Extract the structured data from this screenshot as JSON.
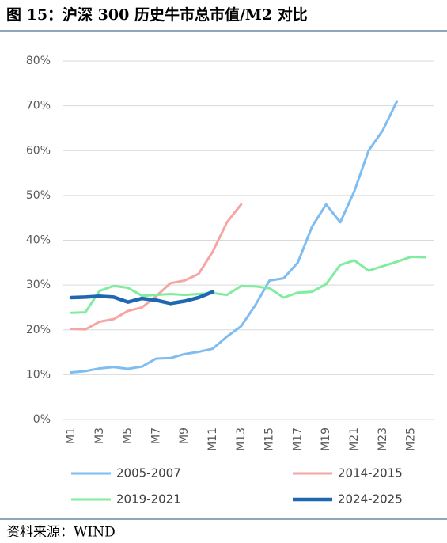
{
  "header": {
    "title": "图 15：沪深 300 历史牛市总市值/M2 对比"
  },
  "chart_data": {
    "type": "line",
    "categories": [
      "M1",
      null,
      "M3",
      null,
      "M5",
      null,
      "M7",
      null,
      "M9",
      null,
      "M11",
      null,
      "M13",
      null,
      "M15",
      null,
      "M17",
      null,
      "M19",
      null,
      "M21",
      null,
      "M23",
      null,
      "M25",
      null
    ],
    "series": [
      {
        "name": "2005-2007",
        "color": "#7fbdf0",
        "width": 3,
        "values": [
          10.5,
          10.8,
          11.4,
          11.7,
          11.3,
          11.8,
          13.6,
          13.7,
          14.6,
          15.1,
          15.8,
          18.5,
          20.8,
          25.5,
          31,
          31.5,
          35,
          43,
          48,
          44,
          51,
          60,
          64.5,
          71,
          null,
          null
        ]
      },
      {
        "name": "2014-2015",
        "color": "#f6a5a5",
        "width": 3,
        "values": [
          20.2,
          20.1,
          21.8,
          22.4,
          24.2,
          25,
          27.5,
          30.4,
          31,
          32.5,
          37.5,
          44,
          48,
          null,
          null,
          null,
          null,
          null,
          null,
          null,
          null,
          null,
          null,
          null,
          null,
          null
        ]
      },
      {
        "name": "2019-2021",
        "color": "#80eca0",
        "width": 3,
        "values": [
          23.8,
          23.9,
          28.7,
          29.8,
          29.4,
          27.6,
          27.8,
          28,
          27.8,
          28,
          28.2,
          27.8,
          29.8,
          29.7,
          29.3,
          27.2,
          28.3,
          28.5,
          30.2,
          34.5,
          35.5,
          33.2,
          34.2,
          35.2,
          36.3,
          36.2
        ]
      },
      {
        "name": "2024-2025",
        "color": "#1f67b1",
        "width": 4.5,
        "values": [
          27.2,
          27.3,
          27.5,
          27.3,
          26.2,
          27,
          26.6,
          25.9,
          26.4,
          27.2,
          28.5,
          null,
          null,
          null,
          null,
          null,
          null,
          null,
          null,
          null,
          null,
          null,
          null,
          null,
          null,
          null
        ]
      }
    ],
    "ylim": [
      0,
      80
    ],
    "yticks": [
      {
        "value": 0,
        "label": "0%"
      },
      {
        "value": 10,
        "label": "10%"
      },
      {
        "value": 20,
        "label": "20%"
      },
      {
        "value": 30,
        "label": "30%"
      },
      {
        "value": 40,
        "label": "40%"
      },
      {
        "value": 50,
        "label": "50%"
      },
      {
        "value": 60,
        "label": "60%"
      },
      {
        "value": 70,
        "label": "70%"
      },
      {
        "value": 80,
        "label": "80%"
      }
    ],
    "grid": true
  },
  "footer": {
    "source": "资料来源：WIND"
  }
}
